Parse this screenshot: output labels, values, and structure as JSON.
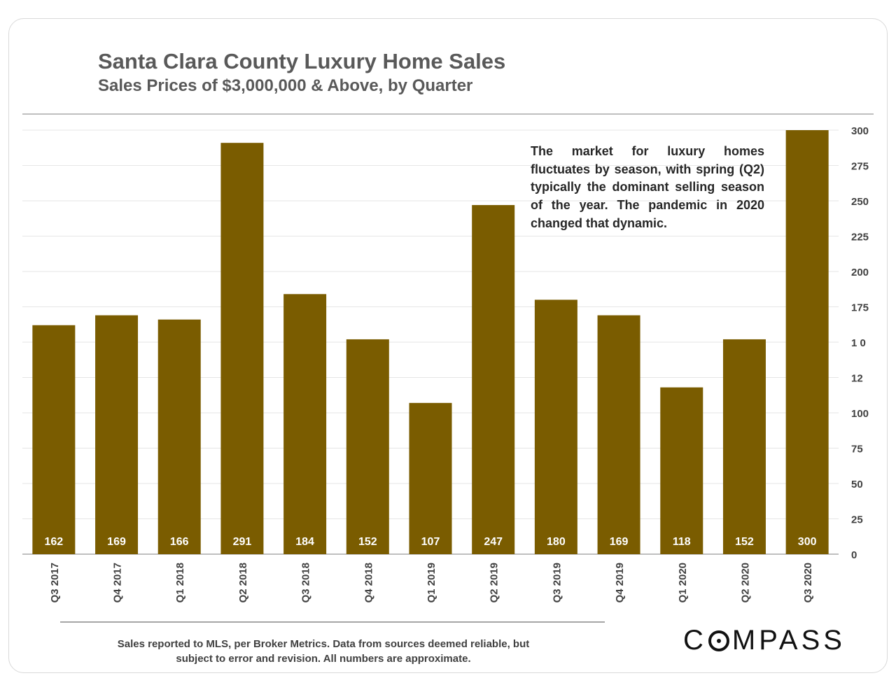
{
  "header": {
    "title": "Santa Clara County Luxury Home Sales",
    "subtitle": "Sales Prices of $3,000,000 & Above, by Quarter"
  },
  "annotation": "The market for luxury homes fluctuates by season, with spring (Q2) typically the dominant selling season of the year. The pandemic in 2020 changed that dynamic.",
  "footnote": {
    "line1": "Sales reported to MLS, per Broker Metrics. Data from sources deemed reliable, but",
    "line2": "subject to error and revision. All numbers are approximate."
  },
  "logo": {
    "prefix": "C",
    "suffix": "MPASS"
  },
  "colors": {
    "bar": "#7a5c00",
    "bar_label": "#ffffff",
    "grid": "#e6e6e6",
    "text": "#404040"
  },
  "chart_data": {
    "type": "bar",
    "title": "Santa Clara County Luxury Home Sales",
    "subtitle": "Sales Prices of $3,000,000 & Above, by Quarter",
    "xlabel": "",
    "ylabel": "",
    "categories": [
      "Q3 2017",
      "Q4 2017",
      "Q1 2018",
      "Q2 2018",
      "Q3 2018",
      "Q4 2018",
      "Q1 2019",
      "Q2 2019",
      "Q3 2019",
      "Q4 2019",
      "Q1 2020",
      "Q2 2020",
      "Q3 2020"
    ],
    "values": [
      162,
      169,
      166,
      291,
      184,
      152,
      107,
      247,
      180,
      169,
      118,
      152,
      300
    ],
    "ylim": [
      0,
      300
    ],
    "yticks": [
      "0",
      "25",
      "50",
      "75",
      "100",
      "12",
      "1 0",
      "175",
      "200",
      "225",
      "250",
      "275",
      "300"
    ],
    "y_axis_side": "right",
    "grid": true,
    "data_labels": true
  }
}
